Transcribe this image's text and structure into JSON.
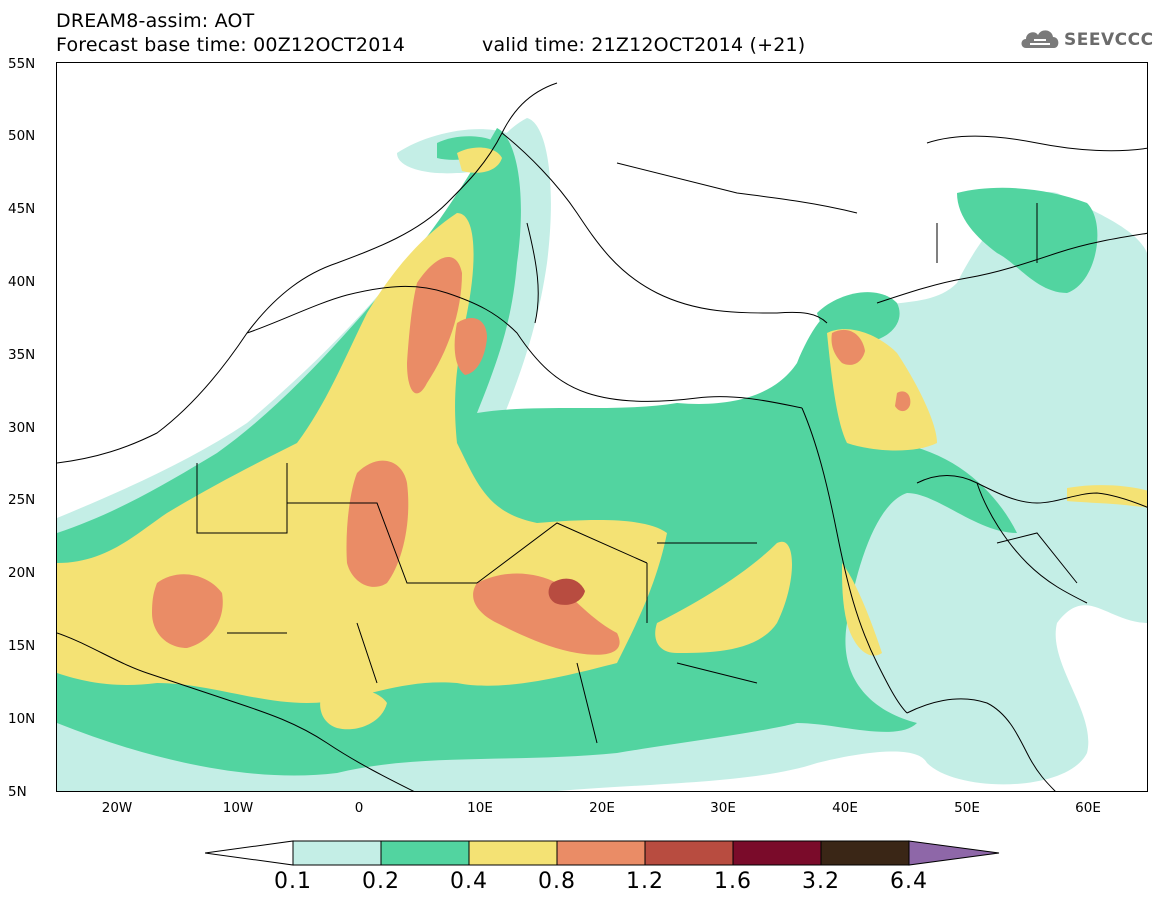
{
  "header": {
    "line1": "DREAM8-assim: AOT",
    "line2": "Forecast base time: 00Z12OCT2014",
    "line3": "valid time: 21Z12OCT2014 (+21)"
  },
  "logo": {
    "text": "SEEVCCC",
    "icon": "cloud-icon"
  },
  "map": {
    "variable": "AOT",
    "lat_labels": [
      "55N",
      "50N",
      "45N",
      "40N",
      "35N",
      "30N",
      "25N",
      "20N",
      "15N",
      "10N",
      "5N"
    ],
    "lon_labels": [
      "20W",
      "10W",
      "0",
      "10E",
      "20E",
      "30E",
      "40E",
      "50E",
      "60E"
    ]
  },
  "legend": {
    "thresholds": [
      "0.1",
      "0.2",
      "0.4",
      "0.8",
      "1.2",
      "1.6",
      "3.2",
      "6.4"
    ],
    "colors": [
      "#c4eee6",
      "#52d4a0",
      "#f4e274",
      "#ea8c66",
      "#b84c40",
      "#7a0b2a",
      "#3a2616",
      "#8e67a8"
    ]
  }
}
